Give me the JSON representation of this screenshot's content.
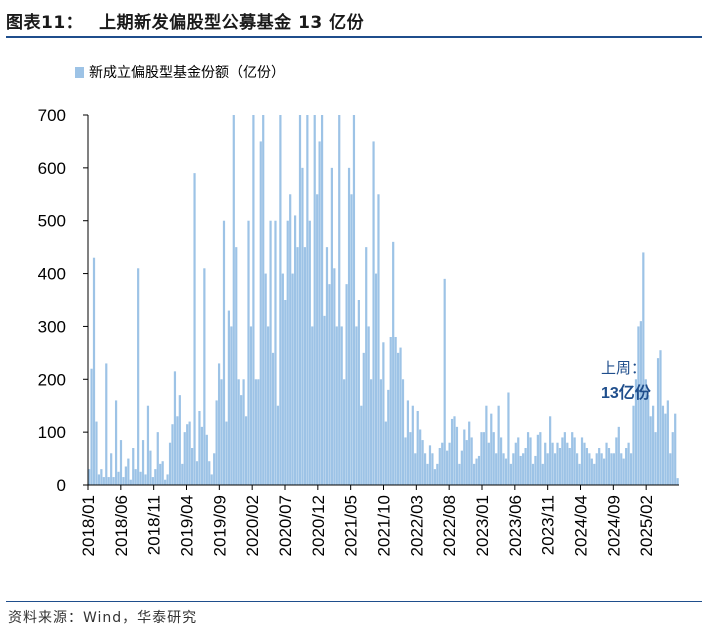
{
  "header": {
    "figure_label": "图表11：",
    "title": "上期新发偏股型公募基金 13 亿份"
  },
  "footer": {
    "source": "资料来源：Wind，华泰研究"
  },
  "colors": {
    "bar": "#9dc3e6",
    "accent": "#1f4e8c",
    "axis": "#000000"
  },
  "chart_data": {
    "type": "bar",
    "legend": [
      "新成立偏股型基金份额（亿份）"
    ],
    "legend_position": "top-left",
    "grid": false,
    "ylim": [
      0,
      700
    ],
    "yticks": [
      "0",
      "100",
      "200",
      "300",
      "400",
      "500",
      "600",
      "700"
    ],
    "xticks": [
      "2018/01",
      "2018/06",
      "2018/11",
      "2019/04",
      "2019/09",
      "2020/02",
      "2020/07",
      "2020/12",
      "2021/05",
      "2021/10",
      "2022/03",
      "2022/08",
      "2023/01",
      "2023/06",
      "2023/11",
      "2024/04",
      "2024/09",
      "2025/02"
    ],
    "annotation": {
      "line1": "上周：",
      "line2": "13亿份"
    },
    "series": [
      {
        "name": "新成立偏股型基金份额（亿份）",
        "values": [
          30,
          220,
          430,
          120,
          20,
          30,
          15,
          230,
          15,
          60,
          15,
          160,
          25,
          85,
          15,
          35,
          50,
          10,
          70,
          30,
          410,
          25,
          85,
          20,
          150,
          65,
          15,
          30,
          100,
          40,
          45,
          10,
          20,
          80,
          115,
          215,
          130,
          170,
          40,
          100,
          115,
          120,
          70,
          590,
          45,
          140,
          110,
          410,
          95,
          45,
          20,
          60,
          160,
          230,
          200,
          500,
          120,
          330,
          300,
          700,
          450,
          200,
          170,
          200,
          130,
          500,
          300,
          700,
          200,
          200,
          650,
          700,
          400,
          300,
          500,
          250,
          500,
          150,
          700,
          400,
          350,
          500,
          550,
          400,
          510,
          450,
          700,
          600,
          450,
          700,
          500,
          300,
          700,
          550,
          650,
          700,
          320,
          450,
          380,
          600,
          410,
          300,
          700,
          300,
          200,
          380,
          600,
          550,
          700,
          300,
          350,
          150,
          250,
          450,
          300,
          200,
          650,
          400,
          550,
          200,
          270,
          120,
          180,
          280,
          460,
          280,
          250,
          260,
          200,
          90,
          160,
          100,
          150,
          60,
          140,
          105,
          85,
          60,
          40,
          75,
          60,
          30,
          40,
          70,
          80,
          390,
          65,
          80,
          125,
          130,
          110,
          40,
          65,
          105,
          85,
          120,
          90,
          40,
          50,
          55,
          100,
          100,
          150,
          80,
          135,
          100,
          60,
          150,
          90,
          60,
          50,
          175,
          40,
          60,
          80,
          90,
          55,
          60,
          70,
          100,
          90,
          40,
          55,
          95,
          100,
          40,
          80,
          60,
          130,
          80,
          60,
          80,
          70,
          90,
          100,
          80,
          70,
          100,
          90,
          60,
          40,
          90,
          80,
          70,
          60,
          50,
          40,
          60,
          70,
          60,
          50,
          80,
          70,
          60,
          60,
          90,
          110,
          60,
          50,
          70,
          80,
          60,
          150,
          200,
          300,
          310,
          440,
          200,
          170,
          130,
          150,
          100,
          240,
          255,
          150,
          135,
          160,
          60,
          100,
          135,
          13
        ]
      }
    ]
  }
}
